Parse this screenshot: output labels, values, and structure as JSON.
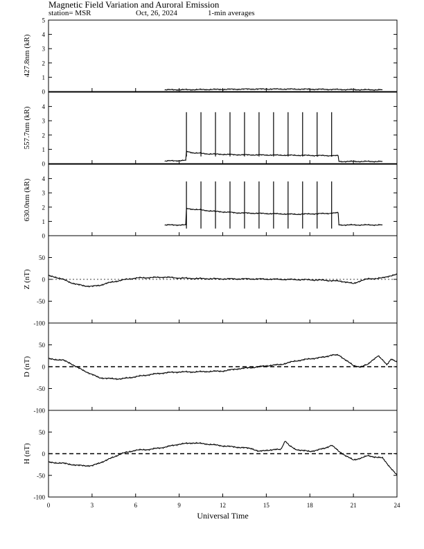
{
  "header": {
    "title": "Magnetic Field Variation and Auroral Emission",
    "station": "station= MSR",
    "date": "Oct, 26, 2024",
    "averaging": "1-min averages"
  },
  "chart_data": {
    "type": "line",
    "x_axis": {
      "label": "Universal Time",
      "range": [
        0,
        24
      ],
      "ticks": [
        0,
        3,
        6,
        9,
        12,
        15,
        18,
        21,
        24
      ]
    },
    "panels": [
      {
        "id": "427",
        "ylabel": "427.8nm (kR)",
        "ylim": [
          0,
          5
        ],
        "yticks": [
          0,
          1,
          2,
          3,
          4,
          5
        ],
        "zero_line": "none",
        "spike_times": [],
        "series": [
          {
            "values": [
              [
                8.0,
                0.12
              ],
              [
                10,
                0.13
              ],
              [
                12,
                0.15
              ],
              [
                14,
                0.17
              ],
              [
                16,
                0.17
              ],
              [
                18,
                0.16
              ],
              [
                20,
                0.14
              ],
              [
                22,
                0.12
              ],
              [
                23.0,
                0.12
              ]
            ]
          }
        ]
      },
      {
        "id": "557",
        "ylabel": "557.7nm (kR)",
        "ylim": [
          0,
          5
        ],
        "yticks": [
          0,
          1,
          2,
          3,
          4
        ],
        "zero_line": "none",
        "spike_times": [
          9.5,
          10.5,
          11.5,
          12.5,
          13.5,
          14.5,
          15.5,
          16.5,
          17.5,
          18.5,
          19.5
        ],
        "spike_peak": 3.6,
        "series": [
          {
            "values": [
              [
                8.0,
                0.18
              ],
              [
                9.45,
                0.22
              ],
              [
                9.5,
                0.85
              ],
              [
                10.0,
                0.75
              ],
              [
                11,
                0.68
              ],
              [
                13,
                0.62
              ],
              [
                15,
                0.6
              ],
              [
                17,
                0.58
              ],
              [
                19,
                0.56
              ],
              [
                19.95,
                0.55
              ],
              [
                20.0,
                0.15
              ],
              [
                23.0,
                0.15
              ]
            ]
          }
        ]
      },
      {
        "id": "630",
        "ylabel": "630.0nm (kR)",
        "ylim": [
          0,
          5
        ],
        "yticks": [
          0,
          1,
          2,
          3,
          4
        ],
        "zero_line": "none",
        "spike_times": [
          9.5,
          10.5,
          11.5,
          12.5,
          13.5,
          14.5,
          15.5,
          16.5,
          17.5,
          18.5,
          19.5
        ],
        "spike_peak": 3.8,
        "series": [
          {
            "values": [
              [
                8.0,
                0.75
              ],
              [
                9.45,
                0.75
              ],
              [
                9.5,
                1.9
              ],
              [
                10.5,
                1.8
              ],
              [
                11.5,
                1.7
              ],
              [
                13,
                1.6
              ],
              [
                15,
                1.55
              ],
              [
                17,
                1.5
              ],
              [
                19,
                1.55
              ],
              [
                19.95,
                1.6
              ],
              [
                20.0,
                0.75
              ],
              [
                23.0,
                0.75
              ]
            ]
          }
        ]
      },
      {
        "id": "Z",
        "ylabel": "Z (nT)",
        "ylim": [
          -100,
          100
        ],
        "yticks": [
          -100,
          -50,
          0,
          50
        ],
        "zero_line": "dotted",
        "spike_times": [],
        "series": [
          {
            "values": [
              [
                0,
                8
              ],
              [
                0.5,
                5
              ],
              [
                1,
                0
              ],
              [
                1.5,
                -7
              ],
              [
                2,
                -12
              ],
              [
                2.5,
                -15
              ],
              [
                3,
                -16
              ],
              [
                3.5,
                -14
              ],
              [
                4,
                -9
              ],
              [
                5,
                -2
              ],
              [
                6,
                3
              ],
              [
                7,
                4
              ],
              [
                8,
                5
              ],
              [
                9,
                3
              ],
              [
                10,
                2
              ],
              [
                12,
                1
              ],
              [
                14,
                1
              ],
              [
                16,
                0
              ],
              [
                18,
                -1
              ],
              [
                19,
                -2
              ],
              [
                20,
                -4
              ],
              [
                20.5,
                -6
              ],
              [
                21,
                -10
              ],
              [
                21.5,
                -3
              ],
              [
                22,
                1
              ],
              [
                23,
                3
              ],
              [
                23.5,
                8
              ],
              [
                24,
                11
              ]
            ]
          }
        ]
      },
      {
        "id": "D",
        "ylabel": "D (nT)",
        "ylim": [
          -100,
          100
        ],
        "yticks": [
          -100,
          -50,
          0,
          50
        ],
        "zero_line": "dashed",
        "spike_times": [],
        "series": [
          {
            "values": [
              [
                0,
                18
              ],
              [
                1,
                15
              ],
              [
                1.5,
                8
              ],
              [
                2,
                -2
              ],
              [
                2.5,
                -10
              ],
              [
                3,
                -18
              ],
              [
                3.5,
                -25
              ],
              [
                4,
                -27
              ],
              [
                5,
                -28
              ],
              [
                6,
                -23
              ],
              [
                7,
                -18
              ],
              [
                8,
                -14
              ],
              [
                9,
                -12
              ],
              [
                10,
                -12
              ],
              [
                11,
                -11
              ],
              [
                12,
                -10
              ],
              [
                13,
                -5
              ],
              [
                14,
                -2
              ],
              [
                15,
                2
              ],
              [
                16,
                5
              ],
              [
                17,
                13
              ],
              [
                18,
                18
              ],
              [
                19,
                22
              ],
              [
                19.5,
                27
              ],
              [
                20,
                26
              ],
              [
                20.5,
                15
              ],
              [
                21,
                2
              ],
              [
                21.5,
                0
              ],
              [
                22,
                5
              ],
              [
                22.3,
                15
              ],
              [
                22.7,
                25
              ],
              [
                23,
                15
              ],
              [
                23.3,
                5
              ],
              [
                23.6,
                18
              ],
              [
                24,
                10
              ]
            ]
          }
        ]
      },
      {
        "id": "H",
        "ylabel": "H (nT)",
        "ylim": [
          -100,
          100
        ],
        "yticks": [
          -100,
          -50,
          0,
          50
        ],
        "zero_line": "dashed",
        "spike_times": [],
        "series": [
          {
            "values": [
              [
                0,
                -20
              ],
              [
                1,
                -22
              ],
              [
                2,
                -27
              ],
              [
                3,
                -28
              ],
              [
                4,
                -15
              ],
              [
                5,
                0
              ],
              [
                6,
                8
              ],
              [
                7,
                10
              ],
              [
                8,
                15
              ],
              [
                9,
                22
              ],
              [
                10,
                25
              ],
              [
                11,
                22
              ],
              [
                12,
                18
              ],
              [
                13,
                15
              ],
              [
                14,
                12
              ],
              [
                14.5,
                5
              ],
              [
                15,
                8
              ],
              [
                16,
                10
              ],
              [
                16.3,
                30
              ],
              [
                16.6,
                18
              ],
              [
                17,
                10
              ],
              [
                18,
                5
              ],
              [
                19,
                12
              ],
              [
                19.5,
                20
              ],
              [
                20,
                5
              ],
              [
                20.5,
                -5
              ],
              [
                21,
                -15
              ],
              [
                22,
                -5
              ],
              [
                23,
                -10
              ],
              [
                23.5,
                -30
              ],
              [
                24,
                -50
              ]
            ]
          }
        ]
      }
    ]
  }
}
